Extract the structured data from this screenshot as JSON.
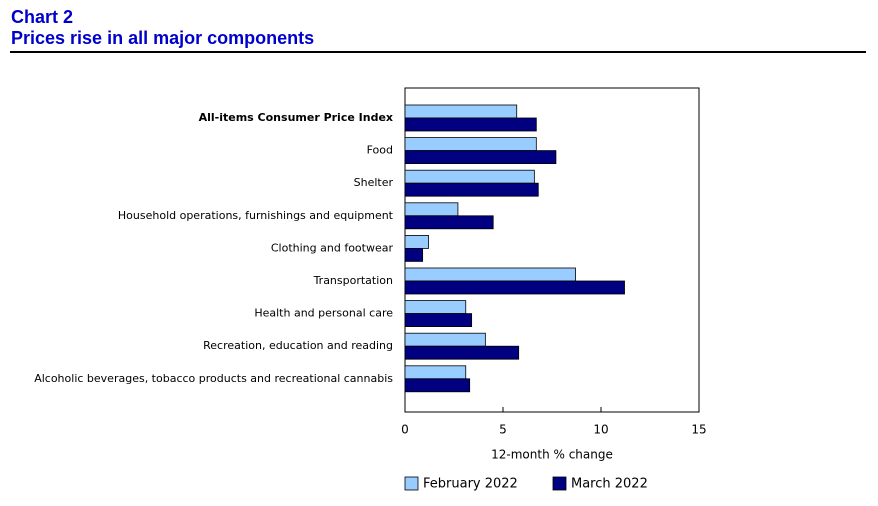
{
  "header": {
    "label": "Chart 2",
    "title": "Prices rise in all major components"
  },
  "chart_data": {
    "type": "hbar",
    "categories": [
      "All-items Consumer Price Index",
      "Food",
      "Shelter",
      "Household operations, furnishings and equipment",
      "Clothing and footwear",
      "Transportation",
      "Health and personal care",
      "Recreation, education and reading",
      "Alcoholic beverages, tobacco products and recreational cannabis"
    ],
    "series": [
      {
        "name": "February 2022",
        "color": "#99ccff",
        "values": [
          5.7,
          6.7,
          6.6,
          2.7,
          1.2,
          8.7,
          3.1,
          4.1,
          3.1
        ]
      },
      {
        "name": "March 2022",
        "color": "#000080",
        "values": [
          6.7,
          7.7,
          6.8,
          4.5,
          0.9,
          11.2,
          3.4,
          5.8,
          3.3
        ]
      }
    ],
    "xlabel": "12-month % change",
    "xlim": [
      0,
      15
    ],
    "xticks": [
      0,
      5,
      10,
      15
    ]
  }
}
